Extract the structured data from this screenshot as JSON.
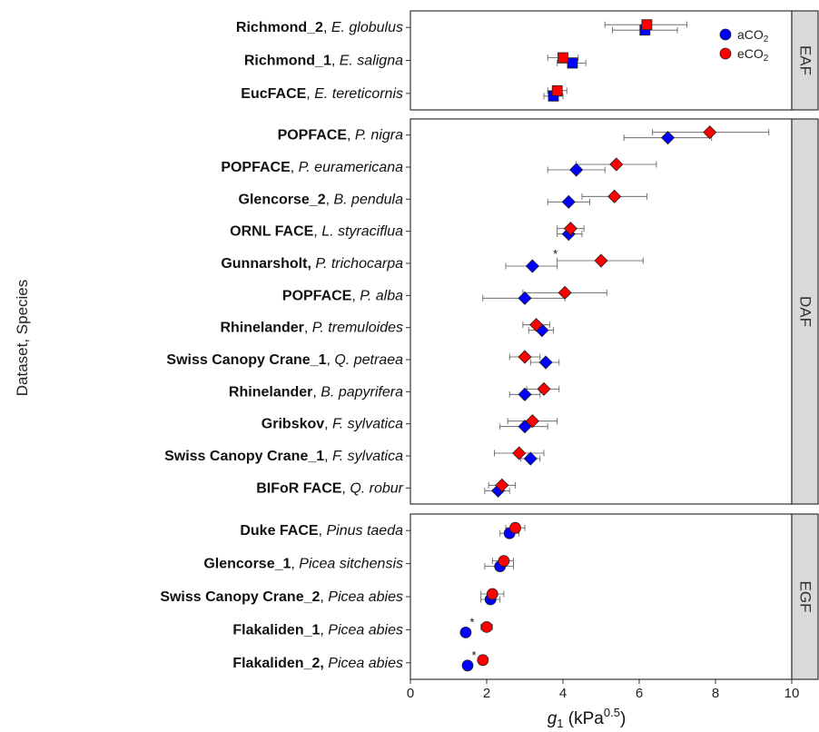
{
  "chart_data": {
    "type": "scatter",
    "ylabel": "Dataset, Species",
    "xlabel": {
      "symbol": "g",
      "sub": "1",
      "unit_open": " (kPa",
      "unit_sup": "0.5",
      "unit_close": ")"
    },
    "xlim": [
      0,
      10
    ],
    "xticks": [
      0,
      2,
      4,
      6,
      8,
      10
    ],
    "grid": false,
    "legend": {
      "placement": "top-right",
      "entries": [
        {
          "name": "aCO",
          "sub": "2",
          "color": "#0000ff"
        },
        {
          "name": "eCO",
          "sub": "2",
          "color": "#ff0000"
        }
      ]
    },
    "panels": [
      {
        "strip": "EAF",
        "marker": "square",
        "rows": [
          {
            "dataset": "Richmond_2",
            "species": "E. globulus",
            "a": 6.15,
            "a_lo": 5.3,
            "a_hi": 7.0,
            "e": 6.2,
            "e_lo": 5.1,
            "e_hi": 7.25,
            "a_star": false,
            "e_star": false
          },
          {
            "dataset": "Richmond_1",
            "species": "E. saligna",
            "a": 4.25,
            "a_lo": 3.85,
            "a_hi": 4.6,
            "e": 4.0,
            "e_lo": 3.6,
            "e_hi": 4.4,
            "a_star": false,
            "e_star": false
          },
          {
            "dataset": "EucFACE",
            "species": "E. tereticornis",
            "a": 3.75,
            "a_lo": 3.5,
            "a_hi": 4.0,
            "e": 3.85,
            "e_lo": 3.6,
            "e_hi": 4.1,
            "a_star": false,
            "e_star": false
          }
        ]
      },
      {
        "strip": "DAF",
        "marker": "diamond",
        "rows": [
          {
            "dataset": "POPFACE",
            "species": "P. nigra",
            "a": 6.75,
            "a_lo": 5.6,
            "a_hi": 7.9,
            "e": 7.85,
            "e_lo": 6.35,
            "e_hi": 9.4,
            "a_star": false,
            "e_star": false
          },
          {
            "dataset": "POPFACE",
            "species": "P. euramericana",
            "a": 4.35,
            "a_lo": 3.6,
            "a_hi": 5.1,
            "e": 5.4,
            "e_lo": 4.35,
            "e_hi": 6.45,
            "a_star": false,
            "e_star": false
          },
          {
            "dataset": "Glencorse_2",
            "species": "B. pendula",
            "a": 4.15,
            "a_lo": 3.6,
            "a_hi": 4.7,
            "e": 5.35,
            "e_lo": 4.5,
            "e_hi": 6.2,
            "a_star": false,
            "e_star": false
          },
          {
            "dataset": "ORNL FACE",
            "species": "L. styraciflua",
            "a": 4.15,
            "a_lo": 3.85,
            "a_hi": 4.5,
            "e": 4.2,
            "e_lo": 3.85,
            "e_hi": 4.55,
            "a_star": false,
            "e_star": false
          },
          {
            "dataset": "Gunnarsholt,",
            "species": "P. trichocarpa",
            "a": 3.2,
            "a_lo": 2.5,
            "a_hi": 3.85,
            "e": 5.0,
            "e_lo": 3.85,
            "e_hi": 6.1,
            "a_star": false,
            "e_star": true
          },
          {
            "dataset": "POPFACE",
            "species": "P. alba",
            "a": 3.0,
            "a_lo": 1.9,
            "a_hi": 4.05,
            "e": 4.05,
            "e_lo": 2.95,
            "e_hi": 5.15,
            "a_star": false,
            "e_star": false
          },
          {
            "dataset": "Rhinelander",
            "species": "P. tremuloides",
            "a": 3.45,
            "a_lo": 3.1,
            "a_hi": 3.75,
            "e": 3.3,
            "e_lo": 2.95,
            "e_hi": 3.65,
            "a_star": false,
            "e_star": false
          },
          {
            "dataset": "Swiss Canopy Crane_1",
            "species": "Q. petraea",
            "a": 3.55,
            "a_lo": 3.15,
            "a_hi": 3.9,
            "e": 3.0,
            "e_lo": 2.6,
            "e_hi": 3.4,
            "a_star": false,
            "e_star": false
          },
          {
            "dataset": "Rhinelander",
            "species": "B. papyrifera",
            "a": 3.0,
            "a_lo": 2.6,
            "a_hi": 3.4,
            "e": 3.5,
            "e_lo": 3.05,
            "e_hi": 3.9,
            "a_star": false,
            "e_star": false
          },
          {
            "dataset": "Gribskov",
            "species": "F. sylvatica",
            "a": 3.0,
            "a_lo": 2.35,
            "a_hi": 3.6,
            "e": 3.2,
            "e_lo": 2.55,
            "e_hi": 3.85,
            "a_star": false,
            "e_star": false
          },
          {
            "dataset": "Swiss Canopy Crane_1",
            "species": "F. sylvatica",
            "a": 3.15,
            "a_lo": 2.9,
            "a_hi": 3.4,
            "e": 2.85,
            "e_lo": 2.2,
            "e_hi": 3.5,
            "a_star": false,
            "e_star": false
          },
          {
            "dataset": "BIFoR FACE",
            "species": "Q. robur",
            "a": 2.3,
            "a_lo": 1.95,
            "a_hi": 2.6,
            "e": 2.4,
            "e_lo": 2.05,
            "e_hi": 2.75,
            "a_star": false,
            "e_star": false
          }
        ]
      },
      {
        "strip": "EGF",
        "marker": "circle",
        "rows": [
          {
            "dataset": "Duke FACE",
            "species": "Pinus taeda",
            "a": 2.6,
            "a_lo": 2.35,
            "a_hi": 2.85,
            "e": 2.75,
            "e_lo": 2.5,
            "e_hi": 3.0,
            "a_star": false,
            "e_star": false
          },
          {
            "dataset": "Glencorse_1",
            "species": "Picea sitchensis",
            "a": 2.35,
            "a_lo": 1.95,
            "a_hi": 2.7,
            "e": 2.45,
            "e_lo": 2.15,
            "e_hi": 2.7,
            "a_star": false,
            "e_star": false
          },
          {
            "dataset": "Swiss Canopy Crane_2",
            "species": "Picea abies",
            "a": 2.1,
            "a_lo": 1.85,
            "a_hi": 2.35,
            "e": 2.15,
            "e_lo": 1.85,
            "e_hi": 2.45,
            "a_star": false,
            "e_star": false
          },
          {
            "dataset": "Flakaliden_1",
            "species": "Picea abies",
            "a": 1.45,
            "a_lo": 1.35,
            "a_hi": 1.55,
            "e": 2.0,
            "e_lo": 1.85,
            "e_hi": 2.15,
            "a_star": true,
            "e_star": false
          },
          {
            "dataset": "Flakaliden_2,",
            "species": "Picea abies",
            "a": 1.5,
            "a_lo": 1.4,
            "a_hi": 1.6,
            "e": 1.9,
            "e_lo": 1.8,
            "e_hi": 2.0,
            "a_star": true,
            "e_star": false
          }
        ]
      }
    ]
  }
}
